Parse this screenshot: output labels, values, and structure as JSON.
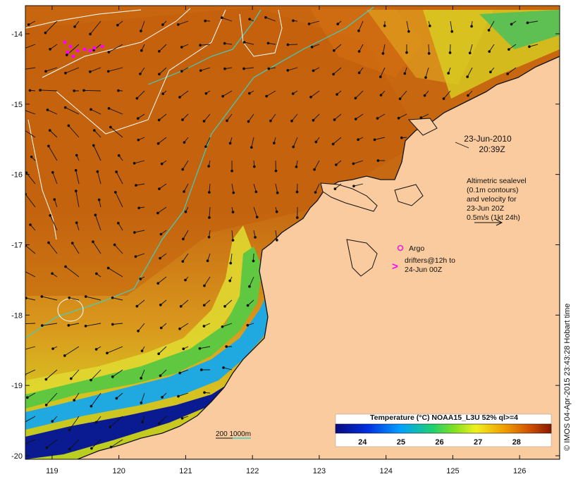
{
  "map": {
    "lon_ticks": [
      "119",
      "120",
      "121",
      "122",
      "123",
      "124",
      "125",
      "126"
    ],
    "lat_ticks": [
      "-14",
      "-15",
      "-16",
      "-17",
      "-18",
      "-19",
      "-20"
    ],
    "lon_range": [
      118.6,
      126.6
    ],
    "lat_range": [
      -20.05,
      -13.6
    ]
  },
  "annotations": {
    "date": "23-Jun-2010",
    "time": "20:39Z",
    "sealevel_lines": [
      "Altimetric sealevel",
      "(0.1m contours)",
      "and velocity for",
      "23-Jun 20Z",
      "0.5m/s (1kt 24h)"
    ],
    "argo_label": "Argo",
    "drifters_line1": "drifters@12h to",
    "drifters_line2": "24-Jun 00Z",
    "drifter_symbol": ">",
    "depth_label": "200  1000m"
  },
  "colorbar": {
    "title": "Temperature (°C) NOAA15_L3U 52% ql>=4",
    "ticks": [
      "24",
      "25",
      "26",
      "27",
      "28"
    ],
    "range": [
      23.3,
      28.9
    ]
  },
  "credit": "© IMOS 04-Apr-2015 23:43:28 Hobart time",
  "colors": {
    "land": "#f9cb9e",
    "contour": "#ffffff",
    "bathymetry": "#3ecfc0",
    "argo": "#e020e0",
    "drifter": "#ff00ff"
  }
}
